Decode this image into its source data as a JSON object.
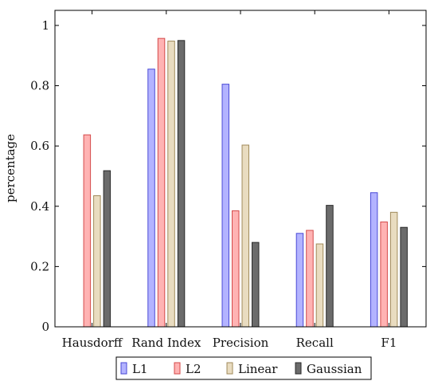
{
  "chart_data": {
    "type": "bar",
    "categories": [
      "Hausdorff",
      "Rand Index",
      "Precision",
      "Recall",
      "F1"
    ],
    "ylabel": "percentage",
    "ylim": [
      0,
      1.05
    ],
    "yticks": [
      "0",
      "0.2",
      "0.4",
      "0.6",
      "0.8",
      "1"
    ],
    "legend_position": "bottom-center",
    "series": [
      {
        "name": "L1",
        "fill": "#b3b3ff",
        "stroke": "#4a4ad6",
        "values": [
          null,
          0.855,
          0.805,
          0.31,
          0.445
        ]
      },
      {
        "name": "L2",
        "fill": "#ffb3b3",
        "stroke": "#d44a4a",
        "values": [
          0.637,
          0.957,
          0.385,
          0.32,
          0.348
        ]
      },
      {
        "name": "Linear",
        "fill": "#e9dcc0",
        "stroke": "#a08a5a",
        "values": [
          0.435,
          0.948,
          0.603,
          0.275,
          0.38
        ]
      },
      {
        "name": "Gaussian",
        "fill": "#6b6b6b",
        "stroke": "#2a2a2a",
        "values": [
          0.518,
          0.95,
          0.28,
          0.403,
          0.33
        ]
      }
    ]
  }
}
